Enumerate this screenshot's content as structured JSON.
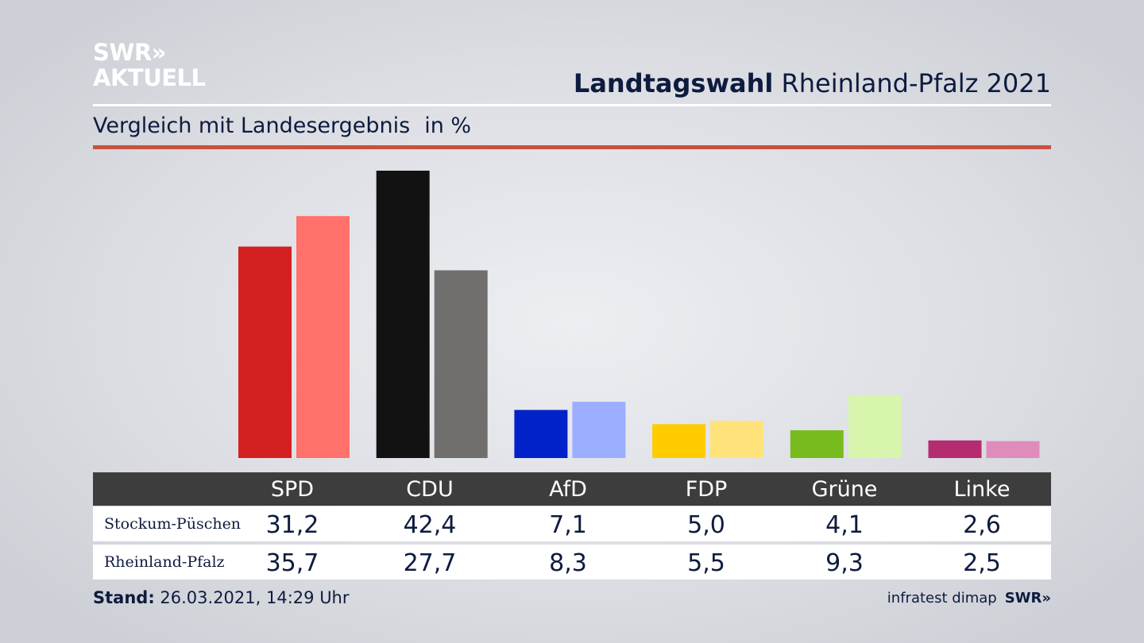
{
  "logo": {
    "line1": "SWR»",
    "line2": "AKTUELL"
  },
  "header": {
    "title_bold": "Landtagswahl",
    "title_rest": "Rheinland-Pfalz 2021"
  },
  "subtitle": {
    "text": "Vergleich mit Landesergebnis",
    "unit": "in %"
  },
  "colors": {
    "accent_rule": "#c9503f",
    "table_header": "#3e3d3d",
    "text": "#0d1b3e"
  },
  "chart_data": {
    "type": "bar",
    "categories": [
      "SPD",
      "CDU",
      "AfD",
      "FDP",
      "Grüne",
      "Linke"
    ],
    "series": [
      {
        "name": "Stockum-Püschen",
        "values": [
          31.2,
          42.4,
          7.1,
          5.0,
          4.1,
          2.6
        ],
        "colors": [
          "#d42020",
          "#121212",
          "#0022c8",
          "#ffcc00",
          "#78bb1e",
          "#b62c70"
        ]
      },
      {
        "name": "Rheinland-Pfalz",
        "values": [
          35.7,
          27.7,
          8.3,
          5.5,
          9.3,
          2.5
        ],
        "colors": [
          "#ff716a",
          "#716f6e",
          "#9baeff",
          "#ffe37a",
          "#d7f5ad",
          "#e08cba"
        ]
      }
    ],
    "ylim": [
      0,
      42.4
    ],
    "grid": false,
    "legend": "table-below"
  },
  "table": {
    "headers": [
      "SPD",
      "CDU",
      "AfD",
      "FDP",
      "Grüne",
      "Linke"
    ],
    "rows": [
      {
        "label": "Stockum-Püschen",
        "values": [
          "31,2",
          "42,4",
          "7,1",
          "5,0",
          "4,1",
          "2,6"
        ]
      },
      {
        "label": "Rheinland-Pfalz",
        "values": [
          "35,7",
          "27,7",
          "8,3",
          "5,5",
          "9,3",
          "2,5"
        ]
      }
    ]
  },
  "footer": {
    "stand_label": "Stand:",
    "stand_value": "26.03.2021, 14:29 Uhr"
  },
  "source": {
    "text": "infratest dimap",
    "logo": "SWR»"
  }
}
